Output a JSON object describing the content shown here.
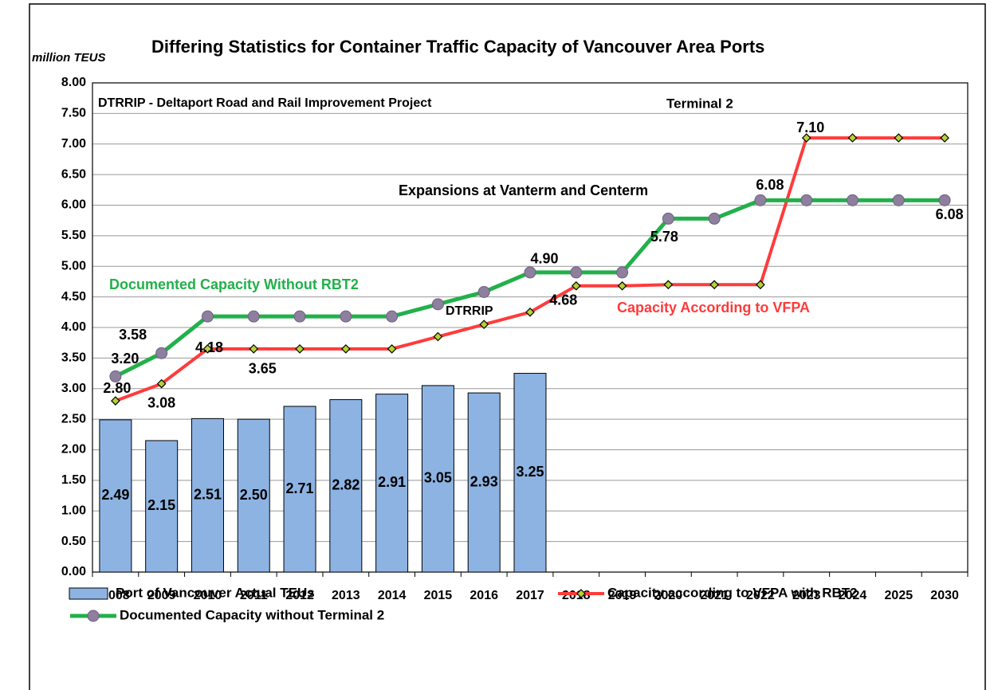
{
  "chart_data": {
    "type": "combo",
    "title": "Differing Statistics for Container Traffic Capacity of Vancouver Area Ports",
    "y_label": "million TEUS",
    "categories": [
      "2008",
      "2009",
      "2010",
      "2011",
      "2012",
      "2013",
      "2014",
      "2015",
      "2016",
      "2017",
      "2018",
      "2019",
      "2020",
      "2021",
      "2022",
      "2023",
      "2024",
      "2025",
      "2030"
    ],
    "ylim": [
      0,
      8
    ],
    "yticks": [
      {
        "value": 0,
        "label": "0.00"
      },
      {
        "value": 0.5,
        "label": "0.50"
      },
      {
        "value": 1,
        "label": "1.00"
      },
      {
        "value": 1.5,
        "label": "1.50"
      },
      {
        "value": 2,
        "label": "2.00"
      },
      {
        "value": 2.5,
        "label": "2.50"
      },
      {
        "value": 3,
        "label": "3.00"
      },
      {
        "value": 3.5,
        "label": "3.50"
      },
      {
        "value": 4,
        "label": "4.00"
      },
      {
        "value": 4.5,
        "label": "4.50"
      },
      {
        "value": 5,
        "label": "5.00"
      },
      {
        "value": 5.5,
        "label": "5.50"
      },
      {
        "value": 6,
        "label": "6.00"
      },
      {
        "value": 6.5,
        "label": "6.50"
      },
      {
        "value": 7,
        "label": "7.00"
      },
      {
        "value": 7.5,
        "label": "7.50"
      },
      {
        "value": 8,
        "label": "8.00"
      }
    ],
    "grid": true,
    "legend": "bottom",
    "series": [
      {
        "name": "Port of Vancouver Actual TEUs",
        "type": "bar",
        "color": "#8db3e2",
        "values": [
          2.49,
          2.15,
          2.51,
          2.5,
          2.71,
          2.82,
          2.91,
          3.05,
          2.93,
          3.25,
          null,
          null,
          null,
          null,
          null,
          null,
          null,
          null,
          null
        ],
        "value_labels": [
          "2.49",
          "2.15",
          "2.51",
          "2.50",
          "2.71",
          "2.82",
          "2.91",
          "3.05",
          "2.93",
          "3.25",
          null,
          null,
          null,
          null,
          null,
          null,
          null,
          null,
          null
        ]
      },
      {
        "name": "Capacity according to VFPA with RBT2",
        "type": "line",
        "color": "#ff3b3b",
        "marker": "diamond",
        "marker_color": "#b5d334",
        "values": [
          2.8,
          3.08,
          3.65,
          3.65,
          3.65,
          3.65,
          3.65,
          3.85,
          4.05,
          4.25,
          4.68,
          4.68,
          4.7,
          4.7,
          4.7,
          7.1,
          7.1,
          7.1,
          7.1
        ],
        "value_labels": [
          "2.80",
          "3.08",
          null,
          "3.65",
          null,
          null,
          null,
          null,
          null,
          null,
          "4.68",
          null,
          null,
          null,
          null,
          "7.10",
          null,
          null,
          null
        ]
      },
      {
        "name": "Documented Capacity without Terminal 2",
        "type": "line",
        "color": "#22b04a",
        "marker": "circle",
        "marker_color": "#8e7f9e",
        "values": [
          3.2,
          3.58,
          4.18,
          4.18,
          4.18,
          4.18,
          4.18,
          4.38,
          4.58,
          4.9,
          4.9,
          4.9,
          5.78,
          5.78,
          6.08,
          6.08,
          6.08,
          6.08,
          6.08
        ],
        "value_labels": [
          "3.20",
          "3.58",
          "4.18",
          null,
          null,
          null,
          null,
          null,
          null,
          "4.90",
          null,
          null,
          "5.78",
          null,
          "6.08",
          null,
          null,
          null,
          "6.08"
        ]
      }
    ],
    "annotations": [
      {
        "text": "DTRRIP - Deltaport Road and Rail Improvement Project",
        "color": "#000000"
      },
      {
        "text": "Terminal 2",
        "color": "#000000"
      },
      {
        "text": "Expansions at Vanterm and Centerm",
        "color": "#000000"
      },
      {
        "text": "Documented Capacity Without RBT2",
        "color": "#22b04a"
      },
      {
        "text": "DTRRIP",
        "color": "#000000"
      },
      {
        "text": "Capacity According to VFPA",
        "color": "#ff3b3b"
      }
    ]
  }
}
